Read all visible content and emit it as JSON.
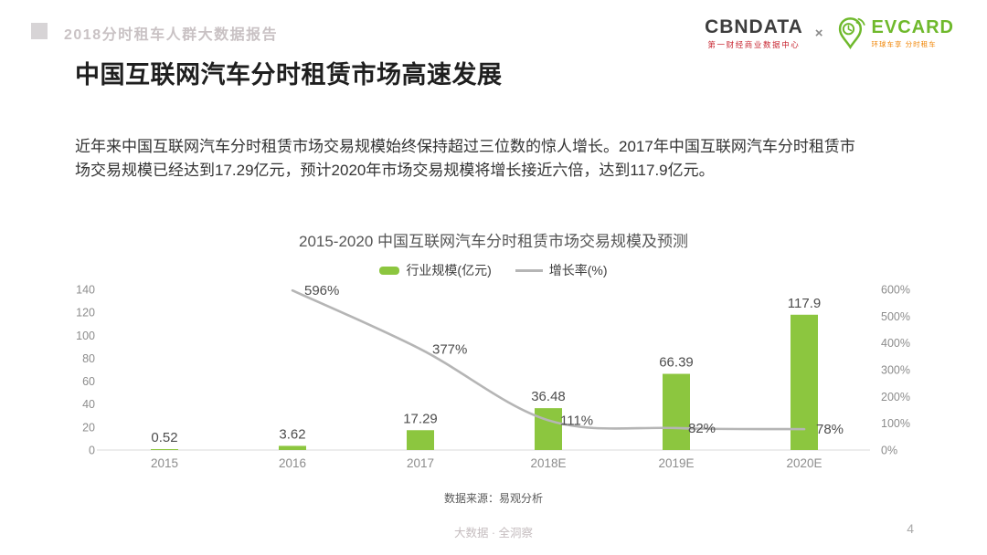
{
  "header": {
    "report_title": "2018分时租车人群大数据报告",
    "cbndata_logo": {
      "name": "CBNDATA",
      "subtitle": "第一财经商业数据中心"
    },
    "logo_separator": "×",
    "evcard_logo": {
      "name": "EVCARD",
      "tagline": "环球车享 分时租车"
    }
  },
  "slide": {
    "title": "中国互联网汽车分时租赁市场高速发展",
    "body_lines": [
      "近年来中国互联网汽车分时租赁市场交易规模始终保持超过三位数的惊人增长。2017年中国互联网汽车分时租赁市",
      "场交易规模已经达到17.29亿元，预计2020年市场交易规模将增长接近六倍，达到117.9亿元。"
    ],
    "source": "数据来源：易观分析"
  },
  "chart_data": {
    "type": "bar",
    "combo": "bar+line dual axis",
    "title": "2015-2020 中国互联网汽车分时租赁市场交易规模及预测",
    "categories": [
      "2015",
      "2016",
      "2017",
      "2018E",
      "2019E",
      "2020E"
    ],
    "series": [
      {
        "name": "行业规模(亿元)",
        "type": "bar",
        "axis": "left",
        "color": "#8CC63F",
        "values": [
          0.52,
          3.62,
          17.29,
          36.48,
          66.39,
          117.9
        ],
        "labels": [
          "0.52",
          "3.62",
          "17.29",
          "36.48",
          "66.39",
          "117.9"
        ]
      },
      {
        "name": "增长率(%)",
        "type": "line",
        "axis": "right",
        "color": "#B5B5B5",
        "values": [
          null,
          596,
          377,
          111,
          82,
          78
        ],
        "labels": [
          null,
          "596%",
          "377%",
          "111%",
          "82%",
          "78%"
        ]
      }
    ],
    "left_axis": {
      "min": 0,
      "max": 140,
      "step": 20,
      "ticks": [
        "0",
        "20",
        "40",
        "60",
        "80",
        "100",
        "120",
        "140"
      ]
    },
    "right_axis": {
      "min": 0,
      "max": 600,
      "step": 100,
      "ticks": [
        "0%",
        "100%",
        "200%",
        "300%",
        "400%",
        "500%",
        "600%"
      ]
    },
    "legend_position": "top",
    "grid": false
  },
  "footer": {
    "slogan": "大数据 · 全洞察",
    "page_number": "4"
  },
  "colors": {
    "bar_green": "#8CC63F",
    "line_gray": "#B5B5B5",
    "evcard_green": "#6FB92C",
    "evcard_orange": "#F08300",
    "cbndata_dark": "#3D3D3D",
    "cbndata_red": "#C7232E",
    "header_text": "#C9C2C4",
    "footer_text": "#C5BDBF"
  }
}
